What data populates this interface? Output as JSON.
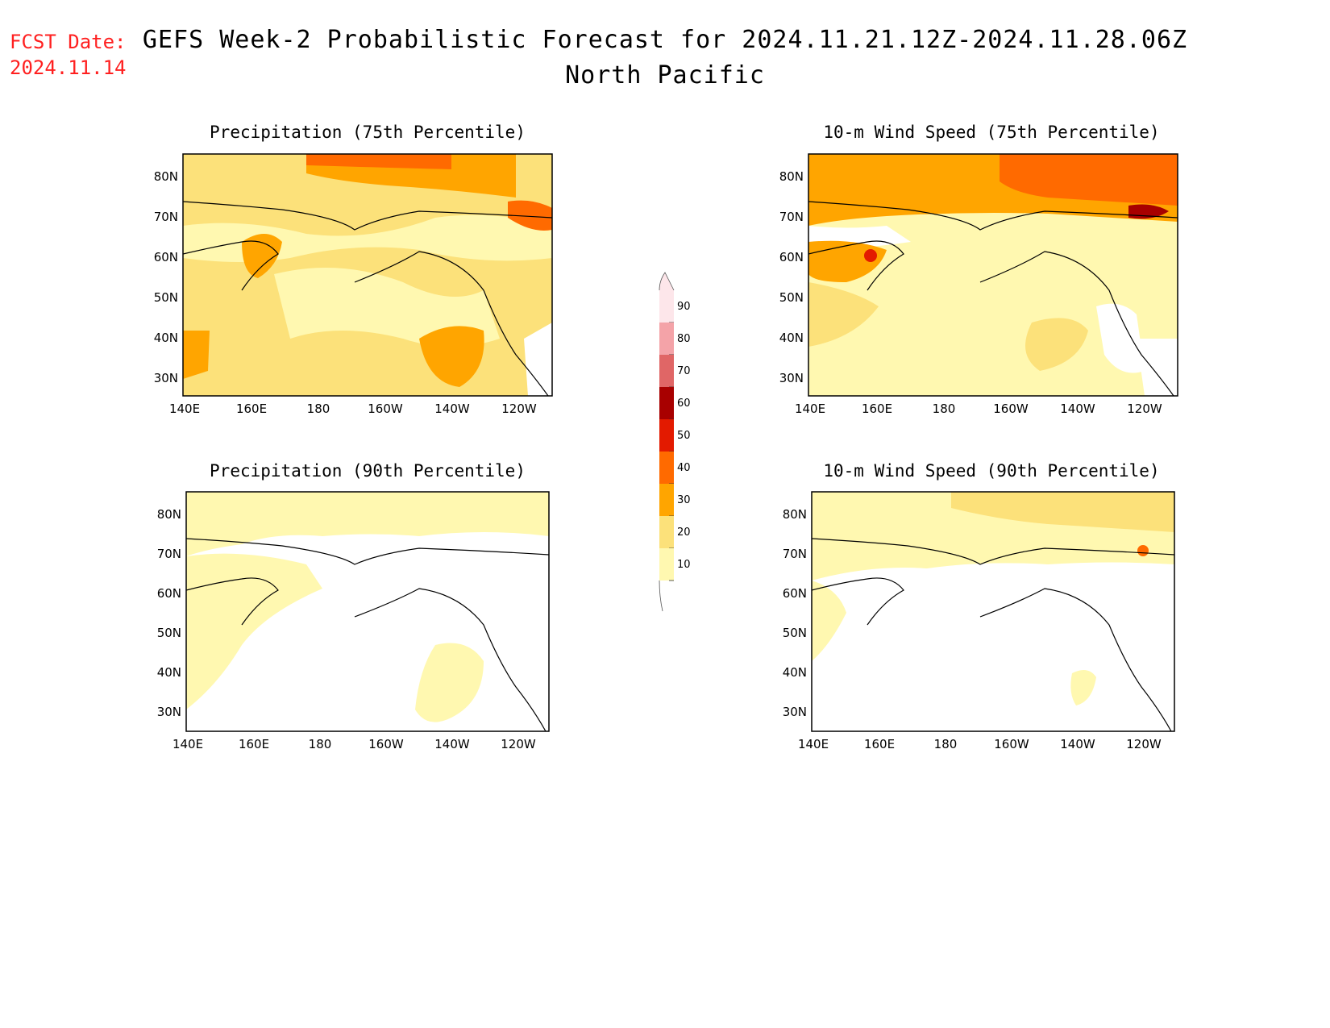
{
  "header": {
    "fcst_label": "FCST Date:",
    "fcst_date": "2024.11.14",
    "title": "GEFS Week-2 Probabilistic Forecast for 2024.11.21.12Z-2024.11.28.06Z",
    "subtitle": "North Pacific"
  },
  "axes": {
    "lat_labels": [
      "80N",
      "70N",
      "60N",
      "50N",
      "40N",
      "30N"
    ],
    "lon_labels": [
      "140E",
      "160E",
      "180",
      "160W",
      "140W",
      "120W"
    ]
  },
  "panels": [
    {
      "id": "precip75",
      "title": "Precipitation (75th Percentile)"
    },
    {
      "id": "wind75",
      "title": "10-m Wind Speed (75th Percentile)"
    },
    {
      "id": "precip90",
      "title": "Precipitation (90th Percentile)"
    },
    {
      "id": "wind90",
      "title": "10-m Wind Speed (90th Percentile)"
    }
  ],
  "colorbar": {
    "levels": [
      "90",
      "80",
      "70",
      "60",
      "50",
      "40",
      "30",
      "20",
      "10"
    ],
    "colors": [
      "#fde6ea",
      "#f4a3a8",
      "#e06666",
      "#a80000",
      "#e31a00",
      "#ff6a00",
      "#ffa500",
      "#fce17a",
      "#fff8b0"
    ]
  }
}
